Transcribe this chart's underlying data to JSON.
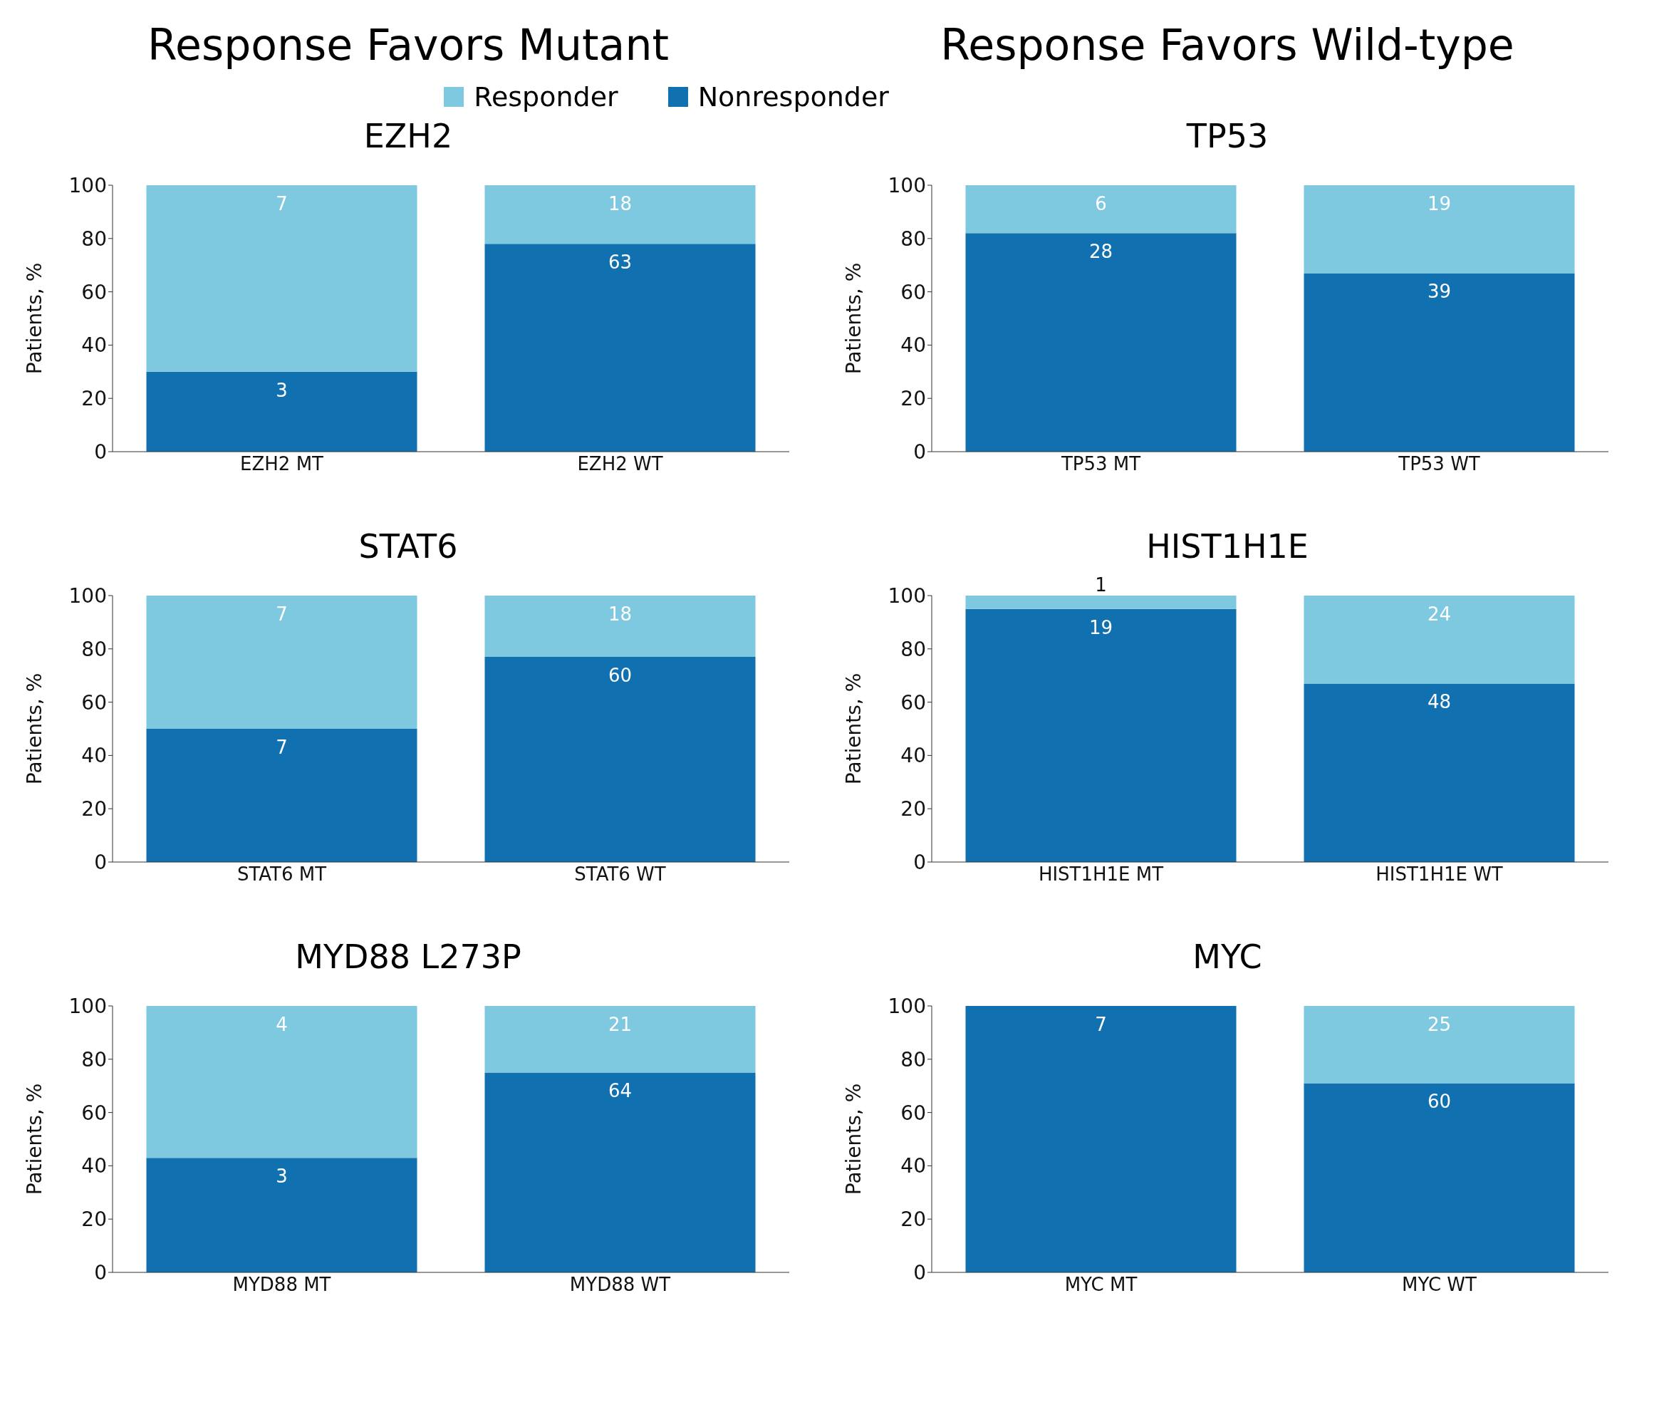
{
  "chart_data": [
    {
      "type": "bar",
      "title": "EZH2",
      "categories": [
        "EZH2 MT",
        "EZH2 WT"
      ],
      "ylabel": "Patients, %",
      "ylim": [
        0,
        100
      ],
      "yticks": [
        0,
        20,
        40,
        60,
        80,
        100
      ],
      "stacked": true,
      "legend": "top right",
      "series": [
        {
          "name": "Nonresponder",
          "color": "#1170b0",
          "values": [
            30,
            78
          ]
        },
        {
          "name": "Responder",
          "color": "#7ec8e0",
          "values": [
            70,
            22
          ]
        }
      ],
      "annotations": [
        "Response Favors Mutant",
        {
          "text": "3",
          "x": "EZH2 MT",
          "y": 30
        },
        {
          "text": "7",
          "x": "EZH2 MT",
          "y": 100
        },
        {
          "text": "63",
          "x": "EZH2 WT",
          "y": 78
        },
        {
          "text": "18",
          "x": "EZH2 WT",
          "y": 100
        }
      ]
    },
    {
      "type": "bar",
      "title": "TP53",
      "categories": [
        "TP53 MT",
        "TP53 WT"
      ],
      "ylabel": "Patients, %",
      "ylim": [
        0,
        100
      ],
      "yticks": [
        0,
        20,
        40,
        60,
        80,
        100
      ],
      "stacked": true,
      "series": [
        {
          "color": "#1170b0",
          "values": [
            82,
            67
          ]
        },
        {
          "color": "#7ec8e0",
          "values": [
            18,
            33
          ]
        }
      ],
      "annotations": [
        "Response Favors Wild-type",
        {
          "text": "28",
          "x": "TP53 MT",
          "y": 82
        },
        {
          "text": "6",
          "x": "TP53 MT",
          "y": 100
        },
        {
          "text": "39",
          "x": "TP53 WT",
          "y": 67
        },
        {
          "text": "19",
          "x": "TP53 WT",
          "y": 100
        }
      ]
    },
    {
      "type": "bar",
      "title": "STAT6",
      "categories": [
        "STAT6 MT",
        "STAT6 WT"
      ],
      "ylabel": "Patients, %",
      "ylim": [
        0,
        100
      ],
      "yticks": [
        0,
        20,
        40,
        60,
        80,
        100
      ],
      "stacked": true,
      "series": [
        {
          "color": "#1170b0",
          "values": [
            50,
            77
          ]
        },
        {
          "color": "#7ec8e0",
          "values": [
            50,
            23
          ]
        }
      ],
      "annotations": [
        {
          "text": "7",
          "x": "STAT6 MT",
          "y": 50
        },
        {
          "text": "7",
          "x": "STAT6 MT",
          "y": 100
        },
        {
          "text": "60",
          "x": "STAT6 WT",
          "y": 77
        },
        {
          "text": "18",
          "x": "STAT6 WT",
          "y": 100
        }
      ]
    },
    {
      "type": "bar",
      "title": "HIST1H1E",
      "categories": [
        "HIST1H1E MT",
        "HIST1H1E WT"
      ],
      "ylabel": "Patients, %",
      "ylim": [
        0,
        100
      ],
      "yticks": [
        0,
        20,
        40,
        60,
        80,
        100
      ],
      "stacked": true,
      "series": [
        {
          "color": "#1170b0",
          "values": [
            95,
            67
          ]
        },
        {
          "color": "#7ec8e0",
          "values": [
            5,
            33
          ]
        }
      ],
      "annotations": [
        {
          "text": "19",
          "x": "HIST1H1E MT",
          "y": 95
        },
        {
          "text": "1",
          "x": "HIST1H1E MT",
          "y": 100
        },
        {
          "text": "48",
          "x": "HIST1H1E WT",
          "y": 67
        },
        {
          "text": "24",
          "x": "HIST1H1E WT",
          "y": 100
        }
      ]
    },
    {
      "type": "bar",
      "title": "MYD88 L273P",
      "categories": [
        "MYD88 MT",
        "MYD88 WT"
      ],
      "ylabel": "Patients, %",
      "ylim": [
        0,
        100
      ],
      "yticks": [
        0,
        20,
        40,
        60,
        80,
        100
      ],
      "stacked": true,
      "series": [
        {
          "color": "#1170b0",
          "values": [
            43,
            75
          ]
        },
        {
          "color": "#7ec8e0",
          "values": [
            57,
            25
          ]
        }
      ],
      "annotations": [
        {
          "text": "3",
          "x": "MYD88 MT",
          "y": 43
        },
        {
          "text": "4",
          "x": "MYD88 MT",
          "y": 100
        },
        {
          "text": "64",
          "x": "MYD88 WT",
          "y": 75
        },
        {
          "text": "21",
          "x": "MYD88 WT",
          "y": 100
        }
      ]
    },
    {
      "type": "bar",
      "title": "MYC",
      "categories": [
        "MYC MT",
        "MYC WT"
      ],
      "ylabel": "Patients, %",
      "ylim": [
        0,
        100
      ],
      "yticks": [
        0,
        20,
        40,
        60,
        80,
        100
      ],
      "stacked": true,
      "series": [
        {
          "color": "#1170b0",
          "values": [
            100,
            71
          ]
        },
        {
          "color": "#7ec8e0",
          "values": [
            0,
            29
          ]
        }
      ],
      "annotations": [
        {
          "text": "7",
          "x": "MYC MT",
          "y": 100
        },
        {
          "text": "60",
          "x": "MYC WT",
          "y": 71
        },
        {
          "text": "25",
          "x": "MYC WT",
          "y": 100
        }
      ]
    }
  ]
}
